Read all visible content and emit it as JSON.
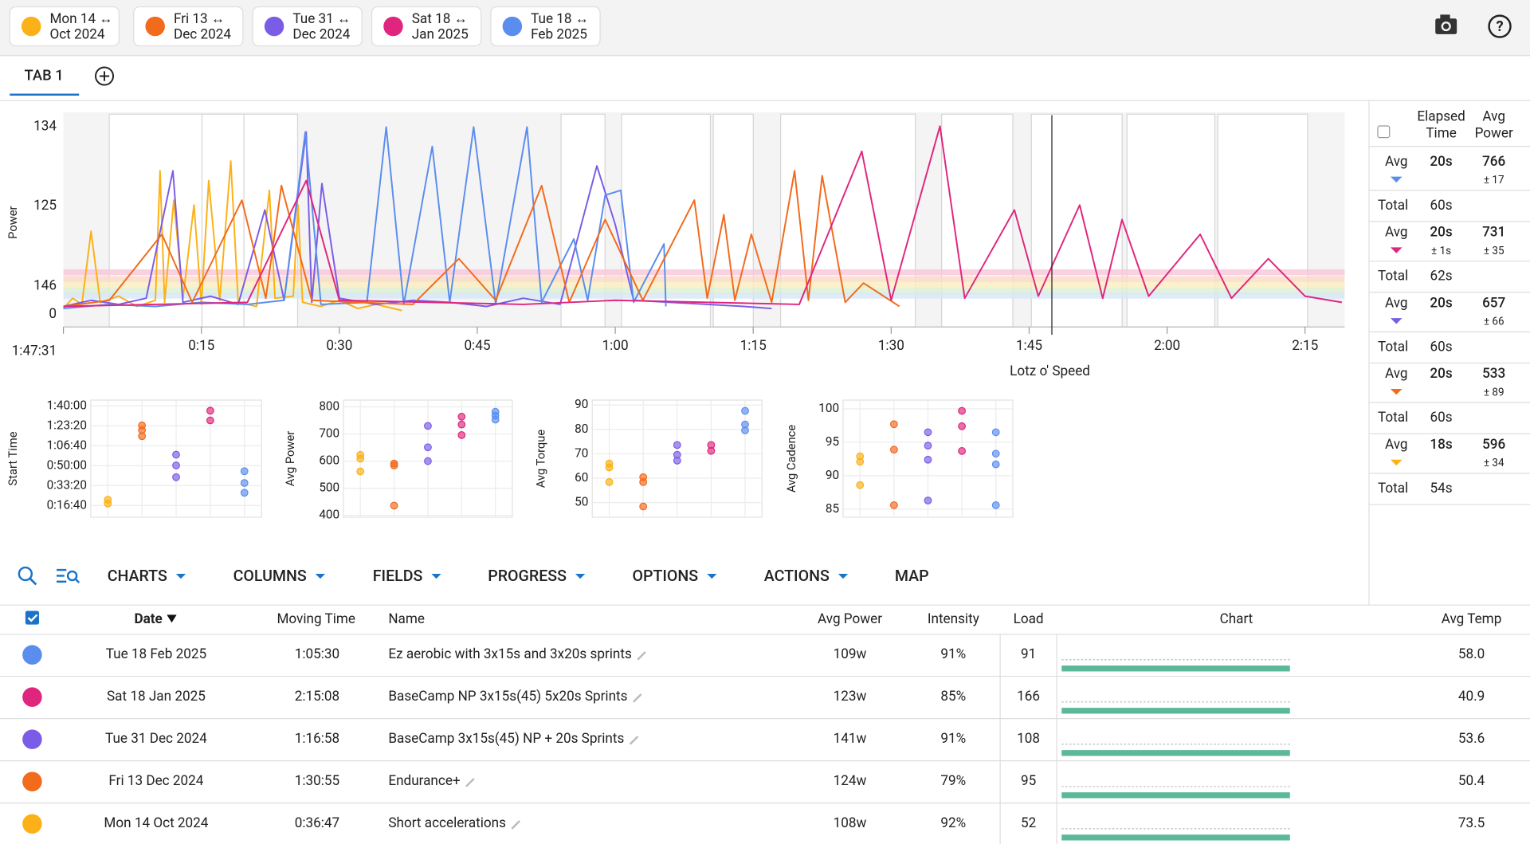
{
  "chips": [
    {
      "day": "Mon 14 ↔",
      "month": "Oct 2024",
      "color": "#fbb117"
    },
    {
      "day": "Fri 13 ↔",
      "month": "Dec 2024",
      "color": "#f26a1b"
    },
    {
      "day": "Tue 31 ↔",
      "month": "Dec 2024",
      "color": "#7b5ce6"
    },
    {
      "day": "Sat 18 ↔",
      "month": "Jan 2025",
      "color": "#e0257e"
    },
    {
      "day": "Tue 18 ↔",
      "month": "Feb 2025",
      "color": "#5b8def"
    }
  ],
  "tabs": [
    "TAB 1"
  ],
  "power_chart": {
    "type": "line",
    "y_label": "Power",
    "y_markers": [
      "134",
      "125",
      "146",
      "0"
    ],
    "xlim": [
      0,
      139.3
    ],
    "ylim": [
      0,
      1048
    ],
    "xticks": [
      {
        "value": 15,
        "label": "0:15"
      },
      {
        "value": 30,
        "label": "0:30"
      },
      {
        "value": 45,
        "label": "0:45"
      },
      {
        "value": 60,
        "label": "1:00"
      },
      {
        "value": 75,
        "label": "1:15"
      },
      {
        "value": 90,
        "label": "1:30"
      },
      {
        "value": 105,
        "label": "1:45"
      },
      {
        "value": 120,
        "label": "2:00"
      },
      {
        "value": 135,
        "label": "2:15"
      }
    ],
    "cursor_time": "1:47:31",
    "cursor_label": "Lotz o' Speed",
    "series": [
      {
        "color": "#fbb117",
        "x": [
          0,
          1,
          2,
          3,
          4,
          6,
          8,
          10,
          10.5,
          11,
          12,
          13,
          14.2,
          15,
          15.8,
          17,
          18.2,
          19,
          21,
          22.4,
          23,
          25,
          25.5,
          26,
          28,
          30,
          32,
          34,
          36.8
        ],
        "values": [
          90,
          140,
          110,
          467,
          120,
          150,
          100,
          130,
          762,
          120,
          619,
          140,
          595,
          110,
          714,
          130,
          810,
          120,
          100,
          667,
          140,
          150,
          595,
          120,
          100,
          130,
          90,
          110,
          80
        ]
      },
      {
        "color": "#7b5ce6",
        "x": [
          0,
          3,
          6,
          9,
          11.9,
          13,
          16,
          19,
          21.9,
          24,
          26.4,
          27,
          28.1,
          30,
          34,
          38,
          42,
          46,
          50,
          54,
          58,
          60,
          62,
          66,
          70,
          74,
          77
        ],
        "values": [
          100,
          130,
          110,
          140,
          762,
          120,
          150,
          110,
          571,
          130,
          952,
          120,
          700,
          140,
          110,
          130,
          120,
          100,
          140,
          110,
          786,
          500,
          130,
          120,
          110,
          100,
          90
        ]
      },
      {
        "color": "#5b8def",
        "x": [
          0,
          5,
          10,
          15,
          20,
          24,
          26.3,
          28,
          33,
          35.1,
          37,
          40.1,
          42,
          44.6,
          47,
          50.4,
          52,
          55.5,
          57,
          58.9,
          60.6,
          62,
          65.3,
          65.5
        ],
        "values": [
          90,
          110,
          100,
          120,
          110,
          130,
          952,
          110,
          120,
          976,
          110,
          881,
          120,
          976,
          110,
          976,
          120,
          429,
          130,
          643,
          667,
          120,
          405,
          100
        ]
      },
      {
        "color": "#f26a1b",
        "x": [
          0,
          5,
          10.7,
          14,
          19.4,
          22,
          23.7,
          27,
          32,
          38,
          43,
          47,
          52,
          55,
          58.9,
          63,
          68.6,
          70,
          71.8,
          73,
          74.8,
          77,
          79.5,
          81,
          82.5,
          85,
          87,
          90.9
        ],
        "values": [
          100,
          130,
          452,
          120,
          619,
          140,
          690,
          130,
          120,
          110,
          333,
          130,
          690,
          120,
          524,
          130,
          619,
          140,
          548,
          130,
          452,
          120,
          762,
          130,
          738,
          120,
          214,
          100
        ]
      },
      {
        "color": "#e0257e",
        "x": [
          0,
          10,
          20,
          26.4,
          30,
          40,
          50,
          60,
          70,
          80,
          86.8,
          90,
          95.3,
          98,
          103.4,
          106,
          110.5,
          113,
          115.1,
          118,
          123.6,
          127,
          131,
          135,
          139
        ],
        "values": [
          100,
          110,
          120,
          714,
          130,
          120,
          110,
          130,
          120,
          110,
          857,
          130,
          980,
          140,
          571,
          150,
          595,
          140,
          524,
          150,
          452,
          140,
          333,
          150,
          120
        ]
      }
    ]
  },
  "scatter_charts": [
    {
      "type": "scatter",
      "y_label": "Start Time",
      "ylim": [
        410,
        6290
      ],
      "yticks": [
        {
          "value": 6000,
          "label": "1:40:00"
        },
        {
          "value": 5000,
          "label": "1:23:20"
        },
        {
          "value": 4000,
          "label": "1:06:40"
        },
        {
          "value": 3000,
          "label": "0:50:00"
        },
        {
          "value": 2000,
          "label": "0:33:20"
        },
        {
          "value": 1000,
          "label": "0:16:40"
        }
      ],
      "series": [
        {
          "color": "#fbb117",
          "values": [
            1290,
            1100
          ]
        },
        {
          "color": "#f26a1b",
          "values": [
            5020,
            4780,
            4480
          ]
        },
        {
          "color": "#7b5ce6",
          "values": [
            3550,
            3010,
            2420
          ]
        },
        {
          "color": "#e0257e",
          "values": [
            5760,
            5270
          ]
        },
        {
          "color": "#5b8def",
          "values": [
            2720,
            2130,
            1640
          ]
        }
      ]
    },
    {
      "type": "scatter",
      "y_label": "Avg Power",
      "ylim": [
        393,
        825
      ],
      "yticks": [
        800,
        700,
        600,
        500,
        400
      ],
      "series": [
        {
          "color": "#fbb117",
          "values": [
            623,
            609,
            562
          ]
        },
        {
          "color": "#f26a1b",
          "values": [
            591,
            584,
            436
          ]
        },
        {
          "color": "#7b5ce6",
          "values": [
            730,
            651,
            600
          ]
        },
        {
          "color": "#e0257e",
          "values": [
            764,
            735,
            696
          ]
        },
        {
          "color": "#5b8def",
          "values": [
            782,
            768,
            753
          ]
        }
      ]
    },
    {
      "type": "scatter",
      "y_label": "Avg Torque",
      "ylim": [
        44,
        92
      ],
      "yticks": [
        90,
        80,
        70,
        60,
        50
      ],
      "series": [
        {
          "color": "#fbb117",
          "values": [
            66,
            64.4,
            58.4
          ]
        },
        {
          "color": "#f26a1b",
          "values": [
            60.4,
            58.4,
            48.4
          ]
        },
        {
          "color": "#7b5ce6",
          "values": [
            73.6,
            69.6,
            67.2
          ]
        },
        {
          "color": "#e0257e",
          "values": [
            73.6,
            71.2
          ]
        },
        {
          "color": "#5b8def",
          "values": [
            87.6,
            82,
            79.6
          ]
        }
      ]
    },
    {
      "type": "scatter",
      "y_label": "Avg Cadence",
      "ylim": [
        83.8,
        101.3
      ],
      "yticks": [
        100,
        95,
        90,
        85
      ],
      "series": [
        {
          "color": "#fbb117",
          "values": [
            92.9,
            92.1,
            88.6
          ]
        },
        {
          "color": "#f26a1b",
          "values": [
            97.7,
            93.9,
            85.6
          ]
        },
        {
          "color": "#7b5ce6",
          "values": [
            96.5,
            94.5,
            92.4,
            86.3
          ]
        },
        {
          "color": "#e0257e",
          "values": [
            99.7,
            97.4,
            93.7
          ]
        },
        {
          "color": "#5b8def",
          "values": [
            96.5,
            93.3,
            91.7,
            85.6
          ]
        }
      ]
    }
  ],
  "intervals": {
    "headers": [
      [
        "Elapsed",
        "Time"
      ],
      [
        "Avg",
        "Power"
      ]
    ],
    "groups": [
      {
        "label": "Avg",
        "color": "#5b8def",
        "elapsed": "20s",
        "power": 766,
        "power_sd": "± 17",
        "total_label": "Total",
        "total": "60s"
      },
      {
        "label": "Avg",
        "color": "#e0257e",
        "elapsed": "20s",
        "elapsed_sd": "± 1s",
        "power": 731,
        "power_sd": "± 35",
        "total_label": "Total",
        "total": "62s"
      },
      {
        "label": "Avg",
        "color": "#7b5ce6",
        "elapsed": "20s",
        "power": 657,
        "power_sd": "± 66",
        "total_label": "Total",
        "total": "60s"
      },
      {
        "label": "Avg",
        "color": "#f26a1b",
        "elapsed": "20s",
        "power": 533,
        "power_sd": "± 89",
        "total_label": "Total",
        "total": "60s"
      },
      {
        "label": "Avg",
        "color": "#fbb117",
        "elapsed": "18s",
        "power": 596,
        "power_sd": "± 34",
        "total_label": "Total",
        "total": "54s"
      }
    ]
  },
  "toolbar": [
    "CHARTS",
    "COLUMNS",
    "FIELDS",
    "PROGRESS",
    "OPTIONS",
    "ACTIONS",
    "MAP"
  ],
  "table": {
    "columns": [
      "Date",
      "Moving Time",
      "Name",
      "Avg Power",
      "Intensity",
      "Load",
      "Chart",
      "Avg Temp"
    ],
    "rows": [
      {
        "color": "#5b8def",
        "date": "Tue 18 Feb 2025",
        "moving_time": "1:05:30",
        "name": "Ez aerobic with 3x15s and 3x20s sprints",
        "avg_power": "109w",
        "intensity": "91%",
        "load": 91,
        "avg_temp": "58.0"
      },
      {
        "color": "#e0257e",
        "date": "Sat 18 Jan 2025",
        "moving_time": "2:15:08",
        "name": "BaseCamp NP 3x15s(45) 5x20s Sprints",
        "avg_power": "123w",
        "intensity": "85%",
        "load": 166,
        "avg_temp": "40.9"
      },
      {
        "color": "#7b5ce6",
        "date": "Tue 31 Dec 2024",
        "moving_time": "1:16:58",
        "name": "BaseCamp 3x15s(45) NP + 20s Sprints",
        "avg_power": "141w",
        "intensity": "91%",
        "load": 108,
        "avg_temp": "53.6"
      },
      {
        "color": "#f26a1b",
        "date": "Fri 13 Dec 2024",
        "moving_time": "1:30:55",
        "name": "Endurance+",
        "avg_power": "124w",
        "intensity": "79%",
        "load": 95,
        "avg_temp": "50.4"
      },
      {
        "color": "#fbb117",
        "date": "Mon 14 Oct 2024",
        "moving_time": "0:36:47",
        "name": "Short accelerations",
        "avg_power": "108w",
        "intensity": "92%",
        "load": 52,
        "avg_temp": "73.5"
      }
    ]
  }
}
